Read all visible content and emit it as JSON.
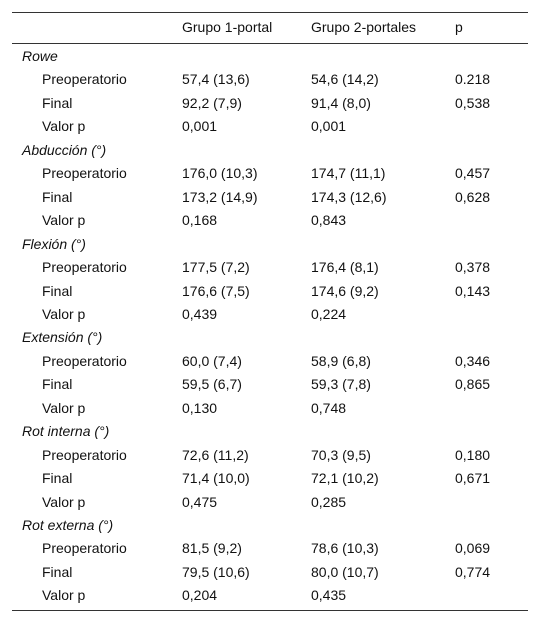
{
  "table": {
    "header": [
      "Grupo 1-portal",
      "Grupo 2-portales",
      "p"
    ],
    "sections": [
      {
        "title": "Rowe",
        "rows": [
          {
            "label": "Preoperatorio",
            "values": [
              "57,4 (13,6)",
              "54,6 (14,2)",
              "0.218"
            ]
          },
          {
            "label": "Final",
            "values": [
              "92,2 (7,9)",
              "91,4 (8,0)",
              "0,538"
            ]
          },
          {
            "label": "Valor p",
            "values": [
              "0,001",
              "0,001"
            ]
          }
        ]
      },
      {
        "title": "Abducción (°)",
        "rows": [
          {
            "label": "Preoperatorio",
            "values": [
              "176,0 (10,3)",
              "174,7 (11,1)",
              "0,457"
            ]
          },
          {
            "label": "Final",
            "values": [
              "173,2 (14,9)",
              "174,3 (12,6)",
              "0,628"
            ]
          },
          {
            "label": "Valor p",
            "values": [
              "0,168",
              "0,843"
            ]
          }
        ]
      },
      {
        "title": "Flexión (°)",
        "rows": [
          {
            "label": "Preoperatorio",
            "values": [
              "177,5 (7,2)",
              "176,4 (8,1)",
              "0,378"
            ]
          },
          {
            "label": "Final",
            "values": [
              "176,6 (7,5)",
              "174,6 (9,2)",
              "0,143"
            ]
          },
          {
            "label": "Valor p",
            "values": [
              "0,439",
              "0,224"
            ]
          }
        ]
      },
      {
        "title": "Extensión (°)",
        "rows": [
          {
            "label": "Preoperatorio",
            "values": [
              "60,0 (7,4)",
              "58,9 (6,8)",
              "0,346"
            ]
          },
          {
            "label": "Final",
            "values": [
              "59,5 (6,7)",
              "59,3 (7,8)",
              "0,865"
            ]
          },
          {
            "label": "Valor p",
            "values": [
              "0,130",
              "0,748"
            ]
          }
        ]
      },
      {
        "title": "Rot interna (°)",
        "rows": [
          {
            "label": "Preoperatorio",
            "values": [
              "72,6 (11,2)",
              "70,3 (9,5)",
              "0,180"
            ]
          },
          {
            "label": "Final",
            "values": [
              "71,4 (10,0)",
              "72,1 (10,2)",
              "0,671"
            ]
          },
          {
            "label": "Valor p",
            "values": [
              "0,475",
              "0,285"
            ]
          }
        ]
      },
      {
        "title": "Rot externa (°)",
        "rows": [
          {
            "label": "Preoperatorio",
            "values": [
              "81,5 (9,2)",
              "78,6 (10,3)",
              "0,069"
            ]
          },
          {
            "label": "Final",
            "values": [
              "79,5 (10,6)",
              "80,0 (10,7)",
              "0,774"
            ]
          },
          {
            "label": "Valor p",
            "values": [
              "0,204",
              "0,435"
            ]
          }
        ]
      }
    ]
  }
}
